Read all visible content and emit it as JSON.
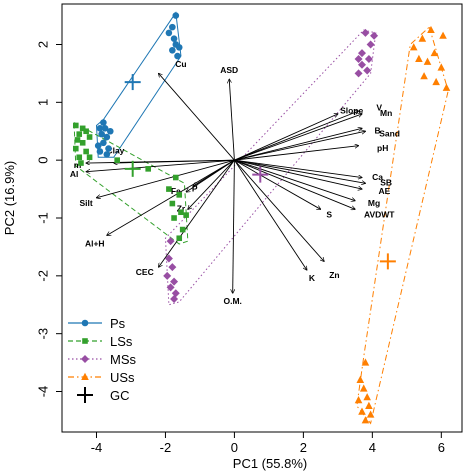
{
  "chart_data": {
    "type": "scatter",
    "xlabel": "PC1 (55.8%)",
    "ylabel": "PC2 (16.9%)",
    "xlim": [
      -5.0,
      6.6
    ],
    "ylim": [
      -4.7,
      2.7
    ],
    "xticks": [
      -4,
      -2,
      0,
      2,
      4,
      6
    ],
    "yticks": [
      -4,
      -3,
      -2,
      -1,
      0,
      1,
      2
    ],
    "legend_position": "bottom-left",
    "series": [
      {
        "name": "Ps",
        "color": "#1f77b4",
        "marker": "circle",
        "hull_style": "solid",
        "points": [
          [
            -1.7,
            2.5
          ],
          [
            -1.8,
            2.3
          ],
          [
            -1.9,
            2.2
          ],
          [
            -1.75,
            2.1
          ],
          [
            -1.7,
            2.0
          ],
          [
            -1.6,
            1.95
          ],
          [
            -1.8,
            1.9
          ],
          [
            -1.65,
            1.8
          ],
          [
            -3.8,
            0.65
          ],
          [
            -3.9,
            0.55
          ],
          [
            -3.75,
            0.55
          ],
          [
            -3.6,
            0.5
          ],
          [
            -3.85,
            0.45
          ],
          [
            -3.7,
            0.4
          ],
          [
            -3.8,
            0.3
          ],
          [
            -3.95,
            0.25
          ],
          [
            -3.65,
            0.2
          ],
          [
            -3.9,
            0.15
          ],
          [
            -3.7,
            0.1
          ]
        ],
        "hull": [
          [
            -1.7,
            2.55
          ],
          [
            -1.55,
            1.8
          ],
          [
            -3.5,
            0.05
          ],
          [
            -3.95,
            0.05
          ],
          [
            -4.0,
            0.6
          ],
          [
            -3.8,
            0.7
          ]
        ]
      },
      {
        "name": "LSs",
        "color": "#33a02c",
        "marker": "square",
        "hull_style": "dashed",
        "points": [
          [
            -4.6,
            0.6
          ],
          [
            -4.4,
            0.55
          ],
          [
            -4.5,
            0.45
          ],
          [
            -4.3,
            0.5
          ],
          [
            -4.55,
            0.35
          ],
          [
            -4.2,
            0.4
          ],
          [
            -4.4,
            0.3
          ],
          [
            -4.6,
            0.2
          ],
          [
            -4.3,
            0.15
          ],
          [
            -4.5,
            0.05
          ],
          [
            -4.2,
            0.05
          ],
          [
            -4.45,
            -0.05
          ],
          [
            -3.4,
            0.0
          ],
          [
            -2.5,
            -0.15
          ],
          [
            -1.7,
            -0.3
          ],
          [
            -1.9,
            -0.5
          ],
          [
            -1.6,
            -0.6
          ],
          [
            -1.8,
            -0.75
          ],
          [
            -1.55,
            -0.9
          ],
          [
            -1.75,
            -1.0
          ],
          [
            -1.4,
            -0.95
          ],
          [
            -1.5,
            -1.2
          ],
          [
            -1.6,
            -1.35
          ]
        ],
        "hull": [
          [
            -4.65,
            0.65
          ],
          [
            -1.45,
            -0.4
          ],
          [
            -1.35,
            -1.4
          ],
          [
            -1.6,
            -1.45
          ],
          [
            -4.6,
            -0.1
          ]
        ]
      },
      {
        "name": "MSs",
        "color": "#984ea3",
        "marker": "diamond",
        "hull_style": "dotted",
        "points": [
          [
            3.8,
            2.2
          ],
          [
            4.05,
            2.15
          ],
          [
            3.95,
            2.0
          ],
          [
            3.7,
            1.85
          ],
          [
            3.6,
            1.75
          ],
          [
            3.9,
            1.75
          ],
          [
            3.7,
            1.65
          ],
          [
            3.85,
            1.55
          ],
          [
            3.6,
            1.5
          ],
          [
            -1.85,
            -1.4
          ],
          [
            -1.9,
            -1.7
          ],
          [
            -1.8,
            -1.85
          ],
          [
            -1.95,
            -2.0
          ],
          [
            -1.75,
            -2.1
          ],
          [
            -1.85,
            -2.2
          ],
          [
            -1.7,
            -2.3
          ],
          [
            -1.75,
            -2.4
          ]
        ],
        "hull": [
          [
            3.75,
            2.25
          ],
          [
            4.1,
            2.2
          ],
          [
            3.95,
            1.5
          ],
          [
            -1.6,
            -2.45
          ],
          [
            -1.9,
            -2.5
          ],
          [
            -2.0,
            -1.35
          ]
        ]
      },
      {
        "name": "USs",
        "color": "#ff7f00",
        "marker": "triangle",
        "hull_style": "dashdot",
        "points": [
          [
            5.7,
            2.25
          ],
          [
            6.05,
            2.15
          ],
          [
            5.45,
            2.1
          ],
          [
            5.2,
            1.95
          ],
          [
            5.8,
            1.85
          ],
          [
            5.35,
            1.75
          ],
          [
            5.6,
            1.7
          ],
          [
            6.0,
            1.6
          ],
          [
            5.5,
            1.45
          ],
          [
            5.85,
            1.35
          ],
          [
            6.15,
            1.25
          ],
          [
            3.8,
            -3.5
          ],
          [
            3.65,
            -3.8
          ],
          [
            3.75,
            -3.95
          ],
          [
            3.85,
            -4.1
          ],
          [
            3.6,
            -4.15
          ],
          [
            3.9,
            -4.25
          ],
          [
            3.7,
            -4.35
          ],
          [
            3.95,
            -4.4
          ],
          [
            3.8,
            -4.5
          ]
        ],
        "hull": [
          [
            5.65,
            2.3
          ],
          [
            6.2,
            1.2
          ],
          [
            3.95,
            -4.55
          ],
          [
            3.55,
            -4.25
          ],
          [
            3.75,
            -3.4
          ],
          [
            5.1,
            2.0
          ]
        ]
      }
    ],
    "group_centroids": {
      "name": "GC",
      "points": [
        {
          "group": "Ps",
          "x": -2.95,
          "y": 1.35,
          "color": "#1f77b4"
        },
        {
          "group": "LSs",
          "x": -2.95,
          "y": -0.15,
          "color": "#33a02c"
        },
        {
          "group": "MSs",
          "x": 0.75,
          "y": -0.25,
          "color": "#984ea3"
        },
        {
          "group": "USs",
          "x": 4.45,
          "y": -1.75,
          "color": "#ff7f00"
        }
      ]
    },
    "loadings": [
      {
        "label": "Cu",
        "x": -2.2,
        "y": 1.5,
        "lx": -1.55,
        "ly": 1.65
      },
      {
        "label": "ASD",
        "x": -0.15,
        "y": 1.4,
        "lx": -0.15,
        "ly": 1.55
      },
      {
        "label": "Slope",
        "x": 3.0,
        "y": 0.8,
        "lx": 3.4,
        "ly": 0.85
      },
      {
        "label": "V",
        "x": 3.6,
        "y": 0.85,
        "lx": 4.2,
        "ly": 0.9
      },
      {
        "label": "Mn",
        "x": 3.7,
        "y": 0.8,
        "lx": 4.4,
        "ly": 0.8
      },
      {
        "label": "B",
        "x": 3.7,
        "y": 0.55,
        "lx": 4.15,
        "ly": 0.5
      },
      {
        "label": "Sand",
        "x": 3.8,
        "y": 0.5,
        "lx": 4.5,
        "ly": 0.45
      },
      {
        "label": "pH",
        "x": 3.6,
        "y": 0.25,
        "lx": 4.3,
        "ly": 0.2
      },
      {
        "label": "Ca",
        "x": 3.7,
        "y": -0.3,
        "lx": 4.15,
        "ly": -0.3
      },
      {
        "label": "SB",
        "x": 3.8,
        "y": -0.4,
        "lx": 4.4,
        "ly": -0.4
      },
      {
        "label": "AE",
        "x": 3.7,
        "y": -0.5,
        "lx": 4.35,
        "ly": -0.55
      },
      {
        "label": "Mg",
        "x": 3.5,
        "y": -0.7,
        "lx": 4.05,
        "ly": -0.75
      },
      {
        "label": "AVDWT",
        "x": 3.5,
        "y": -0.85,
        "lx": 4.2,
        "ly": -0.95
      },
      {
        "label": "S",
        "x": 2.5,
        "y": -0.85,
        "lx": 2.75,
        "ly": -0.95
      },
      {
        "label": "K",
        "x": 2.1,
        "y": -1.9,
        "lx": 2.25,
        "ly": -2.05
      },
      {
        "label": "Zn",
        "x": 2.6,
        "y": -1.75,
        "lx": 2.9,
        "ly": -2.0
      },
      {
        "label": "O.M.",
        "x": -0.05,
        "y": -2.3,
        "lx": -0.05,
        "ly": -2.45
      },
      {
        "label": "CEC",
        "x": -2.2,
        "y": -1.85,
        "lx": -2.6,
        "ly": -1.95
      },
      {
        "label": "Al+H",
        "x": -3.7,
        "y": -1.3,
        "lx": -4.05,
        "ly": -1.45
      },
      {
        "label": "Silt",
        "x": -4.0,
        "y": -0.65,
        "lx": -4.3,
        "ly": -0.75
      },
      {
        "label": "Clay",
        "x": -3.5,
        "y": -0.05,
        "lx": -3.45,
        "ly": 0.15
      },
      {
        "label": "m",
        "x": -4.3,
        "y": -0.05,
        "lx": -4.55,
        "ly": -0.1
      },
      {
        "label": "Al",
        "x": -4.3,
        "y": -0.2,
        "lx": -4.65,
        "ly": -0.25
      },
      {
        "label": "Fe",
        "x": -1.4,
        "y": -0.55,
        "lx": -1.7,
        "ly": -0.55
      },
      {
        "label": "P",
        "x": -1.2,
        "y": -0.45,
        "lx": -1.15,
        "ly": -0.5
      },
      {
        "label": "Zr",
        "x": -1.35,
        "y": -0.85,
        "lx": -1.55,
        "ly": -0.85
      }
    ],
    "legend": [
      {
        "label": "Ps",
        "color": "#1f77b4",
        "marker": "circle",
        "line": "solid"
      },
      {
        "label": "LSs",
        "color": "#33a02c",
        "marker": "square",
        "line": "dashed"
      },
      {
        "label": "MSs",
        "color": "#984ea3",
        "marker": "diamond",
        "line": "dotted"
      },
      {
        "label": "USs",
        "color": "#ff7f00",
        "marker": "triangle",
        "line": "dashdot"
      },
      {
        "label": "GC",
        "color": "#000000",
        "marker": "plus",
        "line": "none"
      }
    ]
  }
}
